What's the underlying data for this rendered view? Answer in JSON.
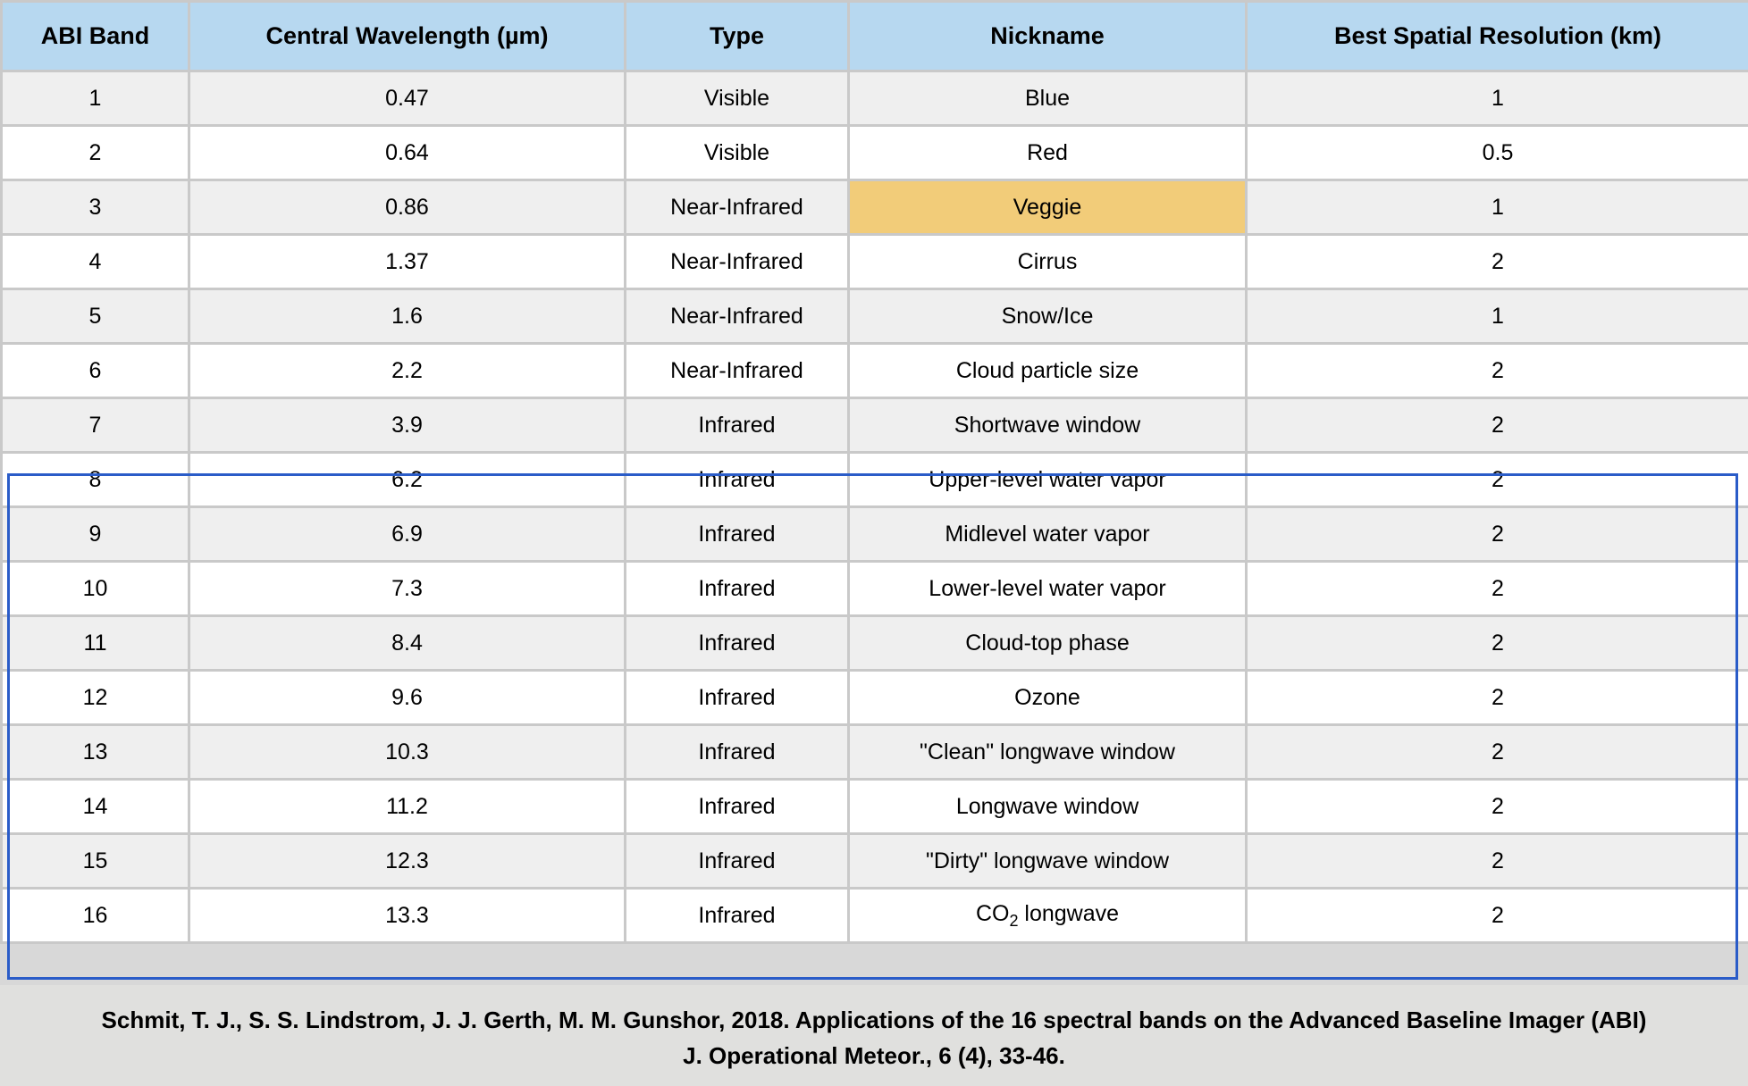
{
  "table": {
    "headers": [
      "ABI Band",
      "Central Wavelength (µm)",
      "Type",
      "Nickname",
      "Best Spatial Resolution (km)"
    ],
    "rows": [
      {
        "band": "1",
        "wavelength": "0.47",
        "type": "Visible",
        "nickname": "Blue",
        "resolution": "1"
      },
      {
        "band": "2",
        "wavelength": "0.64",
        "type": "Visible",
        "nickname": "Red",
        "resolution": "0.5"
      },
      {
        "band": "3",
        "wavelength": "0.86",
        "type": "Near-Infrared",
        "nickname": "Veggie",
        "resolution": "1",
        "highlight_color": "#f2cc79"
      },
      {
        "band": "4",
        "wavelength": "1.37",
        "type": "Near-Infrared",
        "nickname": "Cirrus",
        "resolution": "2"
      },
      {
        "band": "5",
        "wavelength": "1.6",
        "type": "Near-Infrared",
        "nickname": "Snow/Ice",
        "resolution": "1"
      },
      {
        "band": "6",
        "wavelength": "2.2",
        "type": "Near-Infrared",
        "nickname": "Cloud particle size",
        "resolution": "2"
      },
      {
        "band": "7",
        "wavelength": "3.9",
        "type": "Infrared",
        "nickname": "Shortwave window",
        "resolution": "2"
      },
      {
        "band": "8",
        "wavelength": "6.2",
        "type": "Infrared",
        "nickname": "Upper-level water vapor",
        "resolution": "2"
      },
      {
        "band": "9",
        "wavelength": "6.9",
        "type": "Infrared",
        "nickname": "Midlevel water vapor",
        "resolution": "2"
      },
      {
        "band": "10",
        "wavelength": "7.3",
        "type": "Infrared",
        "nickname": "Lower-level water vapor",
        "resolution": "2"
      },
      {
        "band": "11",
        "wavelength": "8.4",
        "type": "Infrared",
        "nickname": "Cloud-top phase",
        "resolution": "2"
      },
      {
        "band": "12",
        "wavelength": "9.6",
        "type": "Infrared",
        "nickname": "Ozone",
        "resolution": "2"
      },
      {
        "band": "13",
        "wavelength": "10.3",
        "type": "Infrared",
        "nickname": "\"Clean\" longwave window",
        "resolution": "2"
      },
      {
        "band": "14",
        "wavelength": "11.2",
        "type": "Infrared",
        "nickname": "Longwave window",
        "resolution": "2"
      },
      {
        "band": "15",
        "wavelength": "12.3",
        "type": "Infrared",
        "nickname": "\"Dirty\" longwave window",
        "resolution": "2"
      },
      {
        "band": "16",
        "wavelength": "13.3",
        "type": "Infrared",
        "nickname": "CO2 longwave",
        "nickname_parts": {
          "pre": "CO",
          "sub": "2",
          "post": " longwave"
        },
        "resolution": "2"
      }
    ]
  },
  "colors": {
    "header_bg": "#b7d8f0",
    "row_alt_bg": "#efefef",
    "highlight": "#f2cc79",
    "ir_box_border": "#2a5cc8",
    "citation_bg": "#e0e0de"
  },
  "citation": {
    "line1": "Schmit, T. J., S. S. Lindstrom, J. J. Gerth, M. M. Gunshor, 2018. Applications of the 16 spectral bands on the Advanced Baseline Imager (ABI)",
    "line2": "J. Operational Meteor., 6 (4), 33-46."
  }
}
